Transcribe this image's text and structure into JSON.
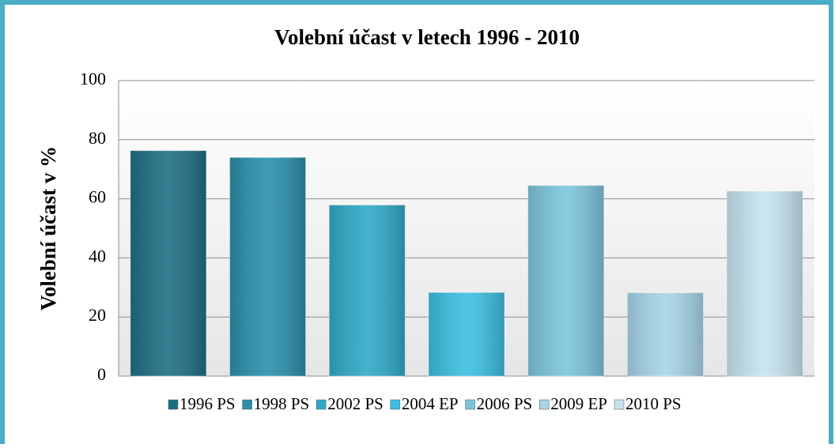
{
  "chart_data": {
    "type": "bar",
    "title": "Volební účast v letech 1996 - 2010",
    "y_label": "Volební účast v %",
    "categories": [
      "1996 PS",
      "1998 PS",
      "2002 PS",
      "2004 EP",
      "2006 PS",
      "2009 EP",
      "2010 PS"
    ],
    "values": [
      76.3,
      74,
      57.9,
      28.3,
      64.5,
      28.2,
      62.6
    ],
    "colors": [
      "#1f6f84",
      "#2a90aa",
      "#30a9c7",
      "#3cbfe0",
      "#7cc5dc",
      "#a6d4e6",
      "#c6e4ef"
    ],
    "ylim": [
      0,
      100
    ],
    "yticks": [
      0,
      20,
      40,
      60,
      80,
      100
    ],
    "grid": true
  }
}
